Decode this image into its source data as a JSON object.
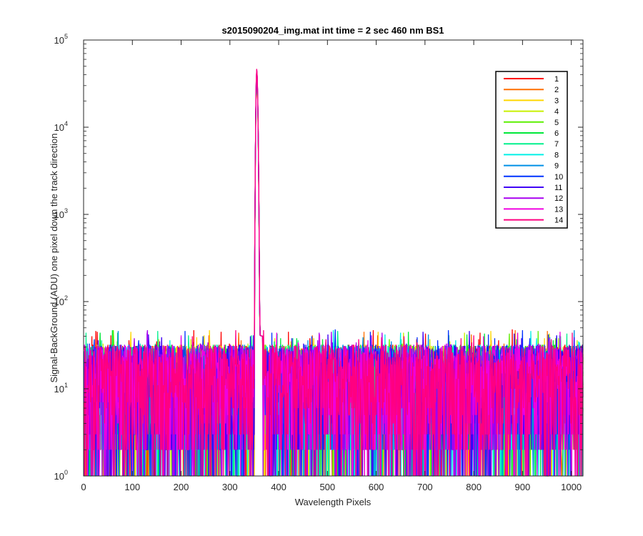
{
  "chart_data": {
    "type": "line",
    "title": "s2015090204_img.mat int time = 2 sec  460 nm BS1",
    "xlabel": "Wavelength Pixels",
    "ylabel": "Signal-BackGround (ADU) one pixel down the track direction",
    "xlim": [
      0,
      1024
    ],
    "ylim": [
      1,
      100000
    ],
    "yscale": "log",
    "grid": false,
    "legend_position": "top-right",
    "x_ticks": [
      0,
      100,
      200,
      300,
      400,
      500,
      600,
      700,
      800,
      900,
      1000
    ],
    "y_ticks": [
      {
        "value": 1,
        "base": "10",
        "exp": "0"
      },
      {
        "value": 10,
        "base": "10",
        "exp": "1"
      },
      {
        "value": 100,
        "base": "10",
        "exp": "2"
      },
      {
        "value": 1000,
        "base": "10",
        "exp": "3"
      },
      {
        "value": 10000,
        "base": "10",
        "exp": "4"
      },
      {
        "value": 100000,
        "base": "10",
        "exp": "5"
      }
    ],
    "x_start": 1,
    "x_end": 1024,
    "noise_level": {
      "typical_min": 2,
      "typical_max": 30,
      "max_spike": 48
    },
    "peak": {
      "x": 355,
      "y": 45000
    },
    "series": [
      {
        "name": "1",
        "color": "#ff0000"
      },
      {
        "name": "2",
        "color": "#ff6f00"
      },
      {
        "name": "3",
        "color": "#ffd700"
      },
      {
        "name": "4",
        "color": "#c8f000"
      },
      {
        "name": "5",
        "color": "#5cf000"
      },
      {
        "name": "6",
        "color": "#00e83a"
      },
      {
        "name": "7",
        "color": "#00f08c"
      },
      {
        "name": "8",
        "color": "#00f0e6"
      },
      {
        "name": "9",
        "color": "#0090e6"
      },
      {
        "name": "10",
        "color": "#0033ff"
      },
      {
        "name": "11",
        "color": "#4000f5"
      },
      {
        "name": "12",
        "color": "#a800f0"
      },
      {
        "name": "13",
        "color": "#f000e0"
      },
      {
        "name": "14",
        "color": "#ff0080"
      }
    ]
  }
}
